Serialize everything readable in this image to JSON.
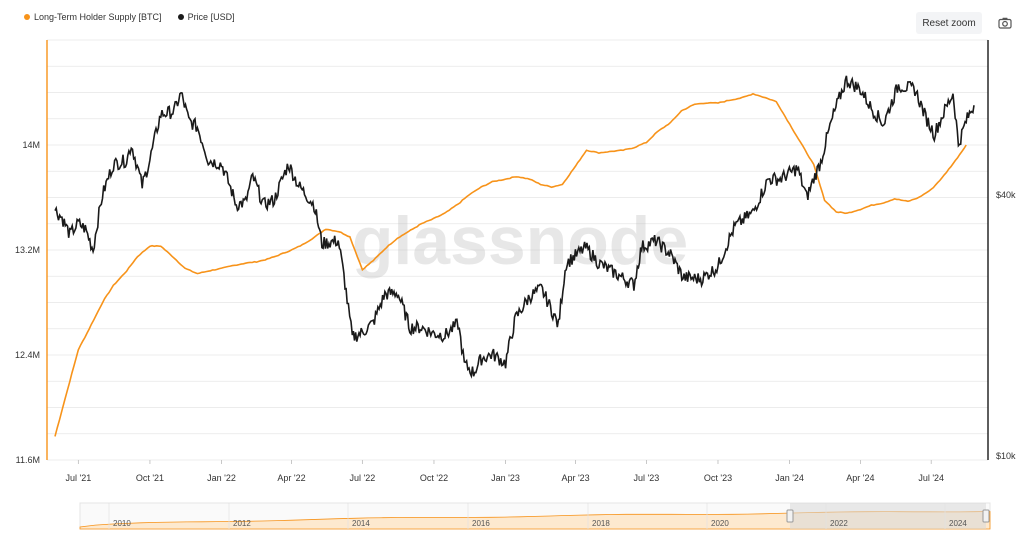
{
  "toolbar": {
    "reset_zoom_label": "Reset zoom",
    "camera_icon": "camera-icon"
  },
  "watermark": "glassnode",
  "colors": {
    "lth_supply": "#f7931a",
    "price": "#1a1a1a",
    "grid": "#e6e6e6",
    "navigator_fill": "#fde9cf"
  },
  "chart_data": {
    "type": "line",
    "legend_placement": "top-left",
    "grid": true,
    "x_tick_labels": [
      "Jul '21",
      "Oct '21",
      "Jan '22",
      "Apr '22",
      "Jul '22",
      "Oct '22",
      "Jan '23",
      "Apr '23",
      "Jul '23",
      "Oct '23",
      "Jan '24",
      "Apr '24",
      "Jul '24"
    ],
    "y_left": {
      "ticks": [
        11600000,
        12400000,
        13200000,
        14000000
      ],
      "tick_labels": [
        "11.6M",
        "12.4M",
        "13.2M",
        "14M"
      ],
      "range": [
        11600000,
        14800000
      ]
    },
    "y_right": {
      "scale": "log",
      "ticks": [
        10000,
        40000
      ],
      "tick_labels": [
        "$10k",
        "$40k"
      ],
      "range": [
        10000,
        90000
      ]
    },
    "series": [
      {
        "name": "Long-Term Holder Supply [BTC]",
        "axis": "left",
        "points": [
          [
            "2021-06-01",
            11780000
          ],
          [
            "2021-06-10",
            11980000
          ],
          [
            "2021-06-20",
            12200000
          ],
          [
            "2021-07-01",
            12440000
          ],
          [
            "2021-07-15",
            12600000
          ],
          [
            "2021-08-01",
            12800000
          ],
          [
            "2021-08-15",
            12930000
          ],
          [
            "2021-09-01",
            13040000
          ],
          [
            "2021-09-15",
            13150000
          ],
          [
            "2021-10-01",
            13230000
          ],
          [
            "2021-10-15",
            13230000
          ],
          [
            "2021-11-01",
            13140000
          ],
          [
            "2021-11-15",
            13060000
          ],
          [
            "2021-12-01",
            13020000
          ],
          [
            "2021-12-15",
            13040000
          ],
          [
            "2022-01-01",
            13060000
          ],
          [
            "2022-01-15",
            13080000
          ],
          [
            "2022-02-01",
            13100000
          ],
          [
            "2022-02-15",
            13110000
          ],
          [
            "2022-03-01",
            13130000
          ],
          [
            "2022-03-15",
            13160000
          ],
          [
            "2022-04-01",
            13200000
          ],
          [
            "2022-04-15",
            13240000
          ],
          [
            "2022-05-01",
            13300000
          ],
          [
            "2022-05-15",
            13360000
          ],
          [
            "2022-06-01",
            13340000
          ],
          [
            "2022-06-15",
            13300000
          ],
          [
            "2022-07-01",
            13050000
          ],
          [
            "2022-07-15",
            13120000
          ],
          [
            "2022-08-01",
            13220000
          ],
          [
            "2022-08-15",
            13290000
          ],
          [
            "2022-09-01",
            13350000
          ],
          [
            "2022-09-15",
            13400000
          ],
          [
            "2022-10-01",
            13440000
          ],
          [
            "2022-10-15",
            13480000
          ],
          [
            "2022-11-01",
            13550000
          ],
          [
            "2022-11-15",
            13620000
          ],
          [
            "2022-12-01",
            13680000
          ],
          [
            "2022-12-15",
            13720000
          ],
          [
            "2023-01-01",
            13740000
          ],
          [
            "2023-01-15",
            13760000
          ],
          [
            "2023-02-01",
            13740000
          ],
          [
            "2023-02-15",
            13700000
          ],
          [
            "2023-03-01",
            13680000
          ],
          [
            "2023-03-15",
            13700000
          ],
          [
            "2023-04-01",
            13840000
          ],
          [
            "2023-04-15",
            13960000
          ],
          [
            "2023-05-01",
            13940000
          ],
          [
            "2023-05-15",
            13950000
          ],
          [
            "2023-06-01",
            13960000
          ],
          [
            "2023-06-15",
            13980000
          ],
          [
            "2023-07-01",
            14020000
          ],
          [
            "2023-07-15",
            14100000
          ],
          [
            "2023-08-01",
            14170000
          ],
          [
            "2023-08-15",
            14260000
          ],
          [
            "2023-09-01",
            14310000
          ],
          [
            "2023-09-15",
            14320000
          ],
          [
            "2023-10-01",
            14320000
          ],
          [
            "2023-10-15",
            14340000
          ],
          [
            "2023-11-01",
            14360000
          ],
          [
            "2023-11-15",
            14390000
          ],
          [
            "2023-12-01",
            14360000
          ],
          [
            "2023-12-15",
            14330000
          ],
          [
            "2024-01-01",
            14160000
          ],
          [
            "2024-01-15",
            14020000
          ],
          [
            "2024-02-01",
            13850000
          ],
          [
            "2024-02-15",
            13580000
          ],
          [
            "2024-03-01",
            13490000
          ],
          [
            "2024-03-15",
            13480000
          ],
          [
            "2024-04-01",
            13510000
          ],
          [
            "2024-04-15",
            13540000
          ],
          [
            "2024-05-01",
            13560000
          ],
          [
            "2024-05-15",
            13590000
          ],
          [
            "2024-06-01",
            13570000
          ],
          [
            "2024-06-15",
            13600000
          ],
          [
            "2024-07-01",
            13660000
          ],
          [
            "2024-07-15",
            13750000
          ],
          [
            "2024-08-01",
            13880000
          ],
          [
            "2024-08-15",
            14000000
          ]
        ]
      },
      {
        "name": "Price [USD]",
        "axis": "right",
        "points": [
          [
            "2021-06-01",
            37000
          ],
          [
            "2021-06-10",
            35500
          ],
          [
            "2021-06-20",
            32500
          ],
          [
            "2021-07-01",
            34500
          ],
          [
            "2021-07-10",
            33500
          ],
          [
            "2021-07-20",
            30000
          ],
          [
            "2021-08-01",
            40000
          ],
          [
            "2021-08-15",
            47000
          ],
          [
            "2021-09-01",
            48000
          ],
          [
            "2021-09-07",
            52000
          ],
          [
            "2021-09-21",
            42000
          ],
          [
            "2021-10-01",
            48000
          ],
          [
            "2021-10-15",
            61000
          ],
          [
            "2021-11-01",
            62000
          ],
          [
            "2021-11-10",
            68000
          ],
          [
            "2021-11-20",
            59000
          ],
          [
            "2021-12-01",
            57000
          ],
          [
            "2021-12-15",
            48000
          ],
          [
            "2022-01-01",
            47000
          ],
          [
            "2022-01-20",
            38000
          ],
          [
            "2022-02-01",
            38500
          ],
          [
            "2022-02-10",
            44000
          ],
          [
            "2022-02-24",
            38000
          ],
          [
            "2022-03-10",
            39000
          ],
          [
            "2022-03-28",
            47000
          ],
          [
            "2022-04-10",
            42000
          ],
          [
            "2022-04-30",
            38000
          ],
          [
            "2022-05-10",
            31000
          ],
          [
            "2022-05-31",
            31500
          ],
          [
            "2022-06-13",
            22000
          ],
          [
            "2022-06-18",
            19000
          ],
          [
            "2022-07-01",
            19500
          ],
          [
            "2022-07-15",
            20500
          ],
          [
            "2022-07-30",
            23800
          ],
          [
            "2022-08-15",
            24000
          ],
          [
            "2022-08-31",
            20000
          ],
          [
            "2022-09-15",
            20000
          ],
          [
            "2022-09-30",
            19400
          ],
          [
            "2022-10-15",
            19200
          ],
          [
            "2022-11-01",
            20400
          ],
          [
            "2022-11-09",
            16500
          ],
          [
            "2022-11-21",
            15800
          ],
          [
            "2022-12-01",
            17000
          ],
          [
            "2022-12-15",
            17400
          ],
          [
            "2023-01-01",
            16600
          ],
          [
            "2023-01-14",
            21000
          ],
          [
            "2023-02-01",
            23500
          ],
          [
            "2023-02-16",
            24500
          ],
          [
            "2023-03-10",
            20200
          ],
          [
            "2023-03-20",
            28000
          ],
          [
            "2023-04-14",
            30400
          ],
          [
            "2023-05-01",
            28000
          ],
          [
            "2023-05-15",
            27000
          ],
          [
            "2023-06-15",
            25000
          ],
          [
            "2023-06-25",
            30500
          ],
          [
            "2023-07-13",
            31500
          ],
          [
            "2023-08-01",
            29300
          ],
          [
            "2023-08-17",
            26000
          ],
          [
            "2023-09-10",
            25800
          ],
          [
            "2023-10-01",
            27500
          ],
          [
            "2023-10-23",
            34000
          ],
          [
            "2023-11-15",
            36500
          ],
          [
            "2023-12-05",
            43500
          ],
          [
            "2023-12-20",
            43500
          ],
          [
            "2024-01-11",
            46000
          ],
          [
            "2024-01-23",
            39500
          ],
          [
            "2024-02-10",
            47500
          ],
          [
            "2024-02-28",
            62000
          ],
          [
            "2024-03-14",
            73000
          ],
          [
            "2024-04-01",
            69500
          ],
          [
            "2024-04-15",
            63000
          ],
          [
            "2024-05-01",
            58000
          ],
          [
            "2024-05-20",
            71000
          ],
          [
            "2024-06-10",
            69500
          ],
          [
            "2024-06-24",
            60000
          ],
          [
            "2024-07-05",
            55000
          ],
          [
            "2024-07-29",
            68000
          ],
          [
            "2024-08-05",
            52000
          ],
          [
            "2024-08-15",
            59000
          ],
          [
            "2024-08-25",
            64000
          ]
        ]
      }
    ]
  },
  "navigator": {
    "tick_labels": [
      "2010",
      "2012",
      "2014",
      "2016",
      "2018",
      "2020",
      "2022",
      "2024"
    ]
  }
}
